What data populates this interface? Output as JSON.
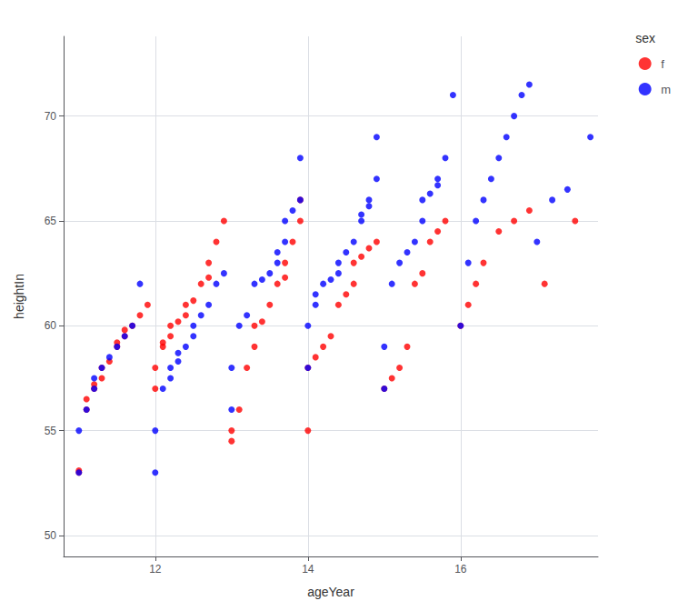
{
  "chart_data": {
    "type": "scatter",
    "xlabel": "ageYear",
    "ylabel": "heightIn",
    "legend_title": "sex",
    "legend": "upper right",
    "grid": true,
    "marker": "circle",
    "xlim": [
      10.8,
      17.8
    ],
    "ylim": [
      49.0,
      73.8
    ],
    "xticks": [
      12,
      14,
      16
    ],
    "yticks": [
      50,
      55,
      60,
      65,
      70
    ],
    "series": [
      {
        "name": "f",
        "color": "#FF0000",
        "x": [
          11.0,
          11.0,
          11.1,
          11.1,
          11.2,
          11.2,
          11.3,
          11.3,
          11.4,
          11.5,
          11.5,
          11.6,
          11.6,
          11.7,
          11.8,
          11.9,
          12.0,
          12.0,
          12.1,
          12.1,
          12.2,
          12.2,
          12.3,
          12.4,
          12.4,
          12.5,
          12.6,
          12.7,
          12.7,
          12.8,
          12.9,
          13.0,
          13.0,
          13.1,
          13.2,
          13.3,
          13.3,
          13.4,
          13.5,
          13.6,
          13.7,
          13.7,
          13.8,
          13.9,
          13.9,
          14.0,
          14.0,
          14.1,
          14.2,
          14.3,
          14.4,
          14.5,
          14.6,
          14.6,
          14.7,
          14.8,
          14.9,
          15.0,
          15.1,
          15.2,
          15.3,
          15.4,
          15.5,
          15.6,
          15.7,
          15.8,
          16.0,
          16.1,
          16.2,
          16.3,
          16.5,
          16.7,
          16.9,
          17.1,
          17.5
        ],
        "values": [
          53.0,
          53.1,
          56.0,
          56.5,
          57.0,
          57.2,
          57.5,
          58.0,
          58.3,
          59.0,
          59.2,
          59.5,
          59.8,
          60.0,
          60.5,
          61.0,
          57.0,
          58.0,
          59.0,
          59.2,
          59.5,
          60.0,
          60.2,
          60.5,
          61.0,
          61.2,
          62.0,
          62.3,
          63.0,
          64.0,
          65.0,
          54.5,
          55.0,
          56.0,
          58.0,
          59.0,
          60.0,
          60.2,
          61.0,
          62.0,
          62.3,
          63.0,
          64.0,
          65.0,
          66.0,
          55.0,
          58.0,
          58.5,
          59.0,
          59.5,
          61.0,
          61.5,
          62.0,
          63.0,
          63.3,
          63.7,
          64.0,
          57.0,
          57.5,
          58.0,
          59.0,
          62.0,
          62.5,
          64.0,
          64.5,
          65.0,
          60.0,
          61.0,
          62.0,
          63.0,
          64.5,
          65.0,
          65.5,
          62.0,
          65.0
        ]
      },
      {
        "name": "m",
        "color": "#0000FF",
        "x": [
          11.0,
          11.0,
          11.1,
          11.2,
          11.2,
          11.3,
          11.4,
          11.5,
          11.6,
          11.7,
          11.8,
          12.0,
          12.0,
          12.1,
          12.2,
          12.2,
          12.3,
          12.3,
          12.4,
          12.5,
          12.5,
          12.6,
          12.7,
          12.8,
          12.9,
          13.0,
          13.0,
          13.1,
          13.2,
          13.3,
          13.4,
          13.5,
          13.6,
          13.6,
          13.7,
          13.7,
          13.8,
          13.9,
          13.9,
          14.0,
          14.0,
          14.1,
          14.1,
          14.2,
          14.3,
          14.4,
          14.4,
          14.5,
          14.6,
          14.7,
          14.7,
          14.8,
          14.8,
          14.9,
          14.9,
          15.0,
          15.0,
          15.1,
          15.2,
          15.3,
          15.4,
          15.5,
          15.5,
          15.6,
          15.7,
          15.7,
          15.8,
          15.9,
          16.0,
          16.1,
          16.2,
          16.3,
          16.4,
          16.5,
          16.6,
          16.7,
          16.8,
          16.9,
          17.0,
          17.2,
          17.4,
          17.7
        ],
        "values": [
          53.0,
          55.0,
          56.0,
          57.0,
          57.5,
          58.0,
          58.5,
          59.0,
          59.5,
          60.0,
          62.0,
          53.0,
          55.0,
          57.0,
          57.5,
          58.0,
          58.3,
          58.7,
          59.0,
          59.5,
          60.0,
          60.5,
          61.0,
          62.0,
          62.5,
          56.0,
          58.0,
          60.0,
          60.5,
          62.0,
          62.2,
          62.5,
          63.0,
          63.5,
          64.0,
          65.0,
          65.5,
          66.0,
          68.0,
          58.0,
          60.0,
          61.0,
          61.5,
          62.0,
          62.2,
          62.5,
          63.0,
          63.5,
          64.0,
          65.0,
          65.3,
          65.7,
          66.0,
          67.0,
          69.0,
          57.0,
          59.0,
          62.0,
          63.0,
          63.5,
          64.0,
          65.0,
          66.0,
          66.3,
          66.7,
          67.0,
          68.0,
          71.0,
          60.0,
          63.0,
          65.0,
          66.0,
          67.0,
          68.0,
          69.0,
          70.0,
          71.0,
          71.5,
          64.0,
          66.0,
          66.5,
          69.0
        ]
      }
    ]
  }
}
